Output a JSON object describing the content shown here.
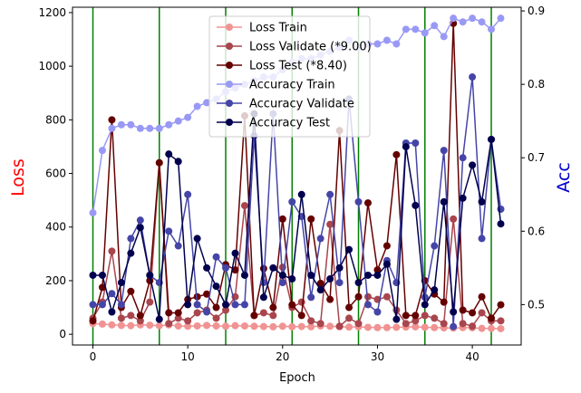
{
  "chart_data": {
    "type": "line",
    "xlabel": "Epoch",
    "ylabel_left": "Loss",
    "ylabel_right": "Acc",
    "ylabel_left_color": "#ff0000",
    "ylabel_right_color": "#0000cc",
    "xlim": [
      -2.15,
      45.15
    ],
    "ylim_left": [
      -40,
      1220
    ],
    "ylim_right": [
      0.445,
      0.905
    ],
    "xticks": [
      0,
      10,
      20,
      30,
      40
    ],
    "yticks_left": [
      0,
      200,
      400,
      600,
      800,
      1000,
      1200
    ],
    "yticks_right": [
      0.5,
      0.6,
      0.7,
      0.8,
      0.9
    ],
    "grid": false,
    "legend_position": "top-center",
    "vlines": {
      "x": [
        0,
        7,
        14,
        21,
        28,
        35,
        42
      ],
      "color": "#008000"
    },
    "epochs": [
      0,
      1,
      2,
      3,
      4,
      5,
      6,
      7,
      8,
      9,
      10,
      11,
      12,
      13,
      14,
      15,
      16,
      17,
      18,
      19,
      20,
      21,
      22,
      23,
      24,
      25,
      26,
      27,
      28,
      29,
      30,
      31,
      32,
      33,
      34,
      35,
      36,
      37,
      38,
      39,
      40,
      41,
      42,
      43
    ],
    "series": [
      {
        "name": "Loss Train",
        "axis": "left",
        "color": "#f19393",
        "values": [
          40,
          38,
          35,
          33,
          32,
          35,
          34,
          32,
          35,
          31,
          30,
          31,
          33,
          31,
          30,
          32,
          31,
          30,
          29,
          28,
          30,
          28,
          29,
          28,
          31,
          30,
          28,
          27,
          28,
          26,
          25,
          25,
          26,
          27,
          28,
          26,
          25,
          24,
          23,
          25,
          24,
          22,
          22,
          21
        ]
      },
      {
        "name": "Loss Validate (*9.00)",
        "axis": "left",
        "color": "#a8454d",
        "values": [
          60,
          120,
          310,
          60,
          70,
          50,
          120,
          640,
          40,
          60,
          50,
          80,
          90,
          60,
          90,
          140,
          480,
          70,
          80,
          70,
          250,
          100,
          120,
          50,
          40,
          410,
          30,
          60,
          40,
          140,
          130,
          140,
          90,
          40,
          50,
          70,
          60,
          40,
          430,
          40,
          30,
          80,
          50,
          50
        ]
      },
      {
        "name": "Loss Test (*8.40)",
        "axis": "left",
        "color": "#650000",
        "values": [
          50,
          175,
          800,
          100,
          160,
          70,
          200,
          640,
          80,
          80,
          130,
          140,
          150,
          100,
          260,
          240,
          815,
          70,
          245,
          100,
          430,
          110,
          70,
          430,
          190,
          130,
          760,
          100,
          140,
          490,
          240,
          330,
          670,
          70,
          70,
          200,
          150,
          120,
          1160,
          90,
          80,
          140,
          60,
          110
        ]
      },
      {
        "name": "Accuracy Train",
        "axis": "right",
        "color": "#9999f5",
        "values": [
          0.625,
          0.71,
          0.74,
          0.745,
          0.745,
          0.74,
          0.74,
          0.74,
          0.745,
          0.75,
          0.755,
          0.77,
          0.775,
          0.78,
          0.79,
          0.795,
          0.8,
          0.805,
          0.81,
          0.81,
          0.82,
          0.83,
          0.835,
          0.835,
          0.84,
          0.845,
          0.85,
          0.86,
          0.85,
          0.855,
          0.855,
          0.86,
          0.855,
          0.875,
          0.875,
          0.87,
          0.88,
          0.865,
          0.89,
          0.885,
          0.89,
          0.885,
          0.875,
          0.89
        ]
      },
      {
        "name": "Accuracy Validate",
        "axis": "right",
        "color": "#4545a8",
        "values": [
          0.5,
          0.5,
          0.515,
          0.5,
          0.59,
          0.615,
          0.54,
          0.53,
          0.6,
          0.58,
          0.65,
          0.5,
          0.49,
          0.565,
          0.55,
          0.5,
          0.5,
          0.73,
          0.53,
          0.76,
          0.53,
          0.64,
          0.62,
          0.51,
          0.59,
          0.65,
          0.53,
          0.78,
          0.64,
          0.5,
          0.49,
          0.56,
          0.53,
          0.72,
          0.72,
          0.51,
          0.58,
          0.71,
          0.47,
          0.7,
          0.81,
          0.59,
          0.725,
          0.63
        ]
      },
      {
        "name": "Accuracy Test",
        "axis": "right",
        "color": "#00004e",
        "values": [
          0.54,
          0.54,
          0.49,
          0.53,
          0.57,
          0.605,
          0.54,
          0.48,
          0.705,
          0.695,
          0.5,
          0.59,
          0.55,
          0.525,
          0.5,
          0.57,
          0.54,
          0.76,
          0.51,
          0.55,
          0.54,
          0.535,
          0.65,
          0.54,
          0.52,
          0.535,
          0.55,
          0.575,
          0.53,
          0.54,
          0.54,
          0.555,
          0.48,
          0.715,
          0.635,
          0.5,
          0.52,
          0.64,
          0.49,
          0.645,
          0.69,
          0.64,
          0.725,
          0.61
        ]
      }
    ]
  }
}
